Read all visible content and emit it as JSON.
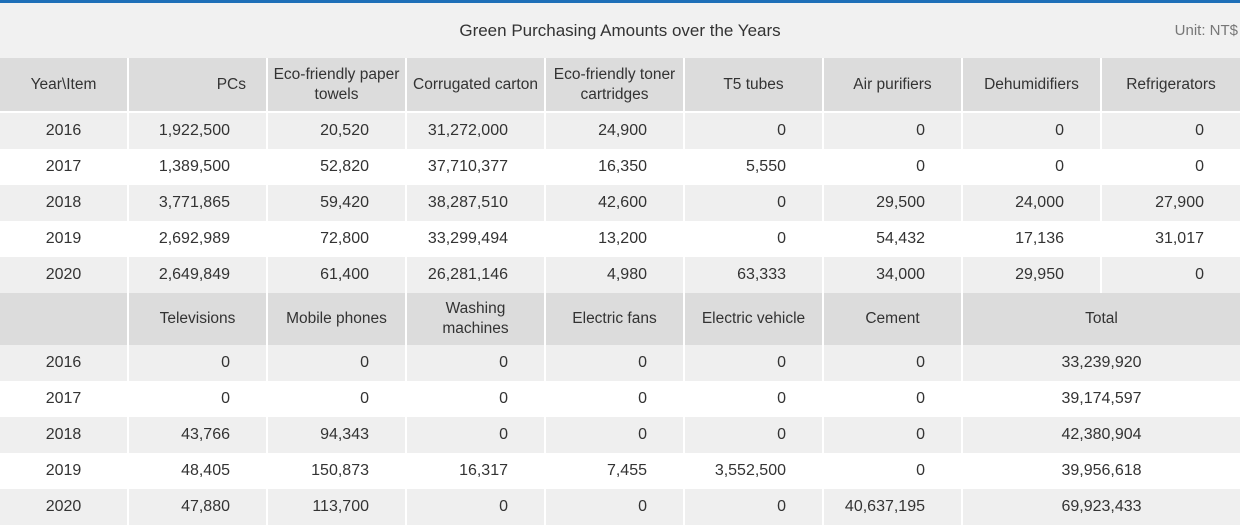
{
  "title": "Green Purchasing Amounts over the Years",
  "unit": "Unit: NT$",
  "table1": {
    "headers": [
      "Year\\Item",
      "PCs",
      "Eco-friendly paper towels",
      "Corrugated carton",
      "Eco-friendly toner cartridges",
      "T5 tubes",
      "Air purifiers",
      "Dehumidifiers",
      "Refrigerators"
    ],
    "rows": [
      [
        "2016",
        "1,922,500",
        "20,520",
        "31,272,000",
        "24,900",
        "0",
        "0",
        "0",
        "0"
      ],
      [
        "2017",
        "1,389,500",
        "52,820",
        "37,710,377",
        "16,350",
        "5,550",
        "0",
        "0",
        "0"
      ],
      [
        "2018",
        "3,771,865",
        "59,420",
        "38,287,510",
        "42,600",
        "0",
        "29,500",
        "24,000",
        "27,900"
      ],
      [
        "2019",
        "2,692,989",
        "72,800",
        "33,299,494",
        "13,200",
        "0",
        "54,432",
        "17,136",
        "31,017"
      ],
      [
        "2020",
        "2,649,849",
        "61,400",
        "26,281,146",
        "4,980",
        "63,333",
        "34,000",
        "29,950",
        "0"
      ]
    ]
  },
  "table2": {
    "headers": [
      "",
      "Televisions",
      "Mobile phones",
      "Washing machines",
      "Electric fans",
      "Electric vehicle",
      "Cement",
      "Total"
    ],
    "rows": [
      [
        "2016",
        "0",
        "0",
        "0",
        "0",
        "0",
        "0",
        "33,239,920"
      ],
      [
        "2017",
        "0",
        "0",
        "0",
        "0",
        "0",
        "0",
        "39,174,597"
      ],
      [
        "2018",
        "43,766",
        "94,343",
        "0",
        "0",
        "0",
        "0",
        "42,380,904"
      ],
      [
        "2019",
        "48,405",
        "150,873",
        "16,317",
        "7,455",
        "3,552,500",
        "0",
        "39,956,618"
      ],
      [
        "2020",
        "47,880",
        "113,700",
        "0",
        "0",
        "0",
        "40,637,195",
        "69,923,433"
      ]
    ]
  }
}
